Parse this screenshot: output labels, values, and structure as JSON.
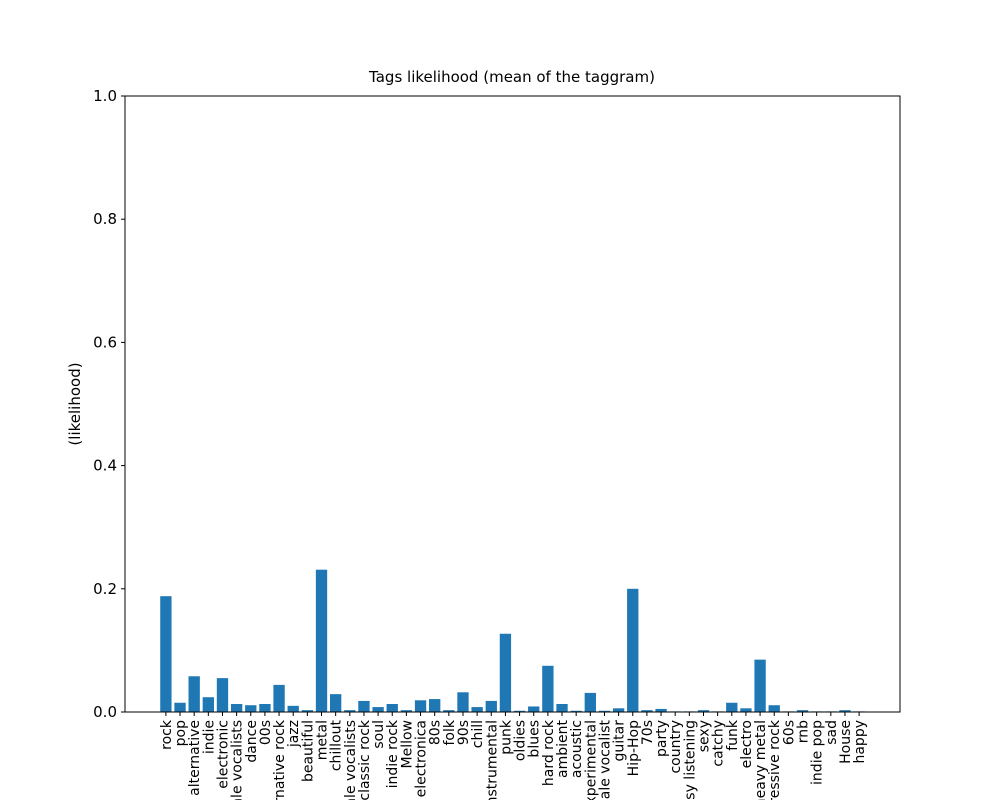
{
  "chart_data": {
    "type": "bar",
    "title": "Tags likelihood (mean of the taggram)",
    "y_label": "(likelihood)",
    "categories": [
      "rock",
      "pop",
      "alternative",
      "indie",
      "electronic",
      "female vocalists",
      "dance",
      "00s",
      "alternative rock",
      "jazz",
      "beautiful",
      "metal",
      "chillout",
      "male vocalists",
      "classic rock",
      "soul",
      "indie rock",
      "Mellow",
      "electronica",
      "80s",
      "folk",
      "90s",
      "chill",
      "instrumental",
      "punk",
      "oldies",
      "blues",
      "hard rock",
      "ambient",
      "acoustic",
      "experimental",
      "female vocalist",
      "guitar",
      "Hip-Hop",
      "70s",
      "party",
      "country",
      "easy listening",
      "sexy",
      "catchy",
      "funk",
      "electro",
      "heavy metal",
      "Progressive rock",
      "60s",
      "rnb",
      "indie pop",
      "sad",
      "House",
      "happy"
    ],
    "values": [
      0.188,
      0.015,
      0.058,
      0.024,
      0.055,
      0.013,
      0.011,
      0.013,
      0.044,
      0.01,
      0.003,
      0.231,
      0.029,
      0.003,
      0.018,
      0.008,
      0.013,
      0.003,
      0.019,
      0.021,
      0.003,
      0.032,
      0.008,
      0.018,
      0.127,
      0.002,
      0.009,
      0.075,
      0.013,
      0.002,
      0.031,
      0.002,
      0.006,
      0.2,
      0.003,
      0.005,
      0.001,
      0.001,
      0.003,
      0.001,
      0.015,
      0.006,
      0.085,
      0.011,
      0.001,
      0.003,
      0.001,
      0.001,
      0.003,
      0.001
    ],
    "color": "#1f77b4",
    "ylim": [
      0,
      1
    ],
    "yticks": [
      {
        "value": 0,
        "label": "0.0"
      },
      {
        "value": 0.2,
        "label": "0.2"
      },
      {
        "value": 0.4,
        "label": "0.4"
      },
      {
        "value": 0.6,
        "label": "0.6"
      },
      {
        "value": 0.8,
        "label": "0.8"
      },
      {
        "value": 1,
        "label": "1.0"
      }
    ],
    "grid": false
  }
}
